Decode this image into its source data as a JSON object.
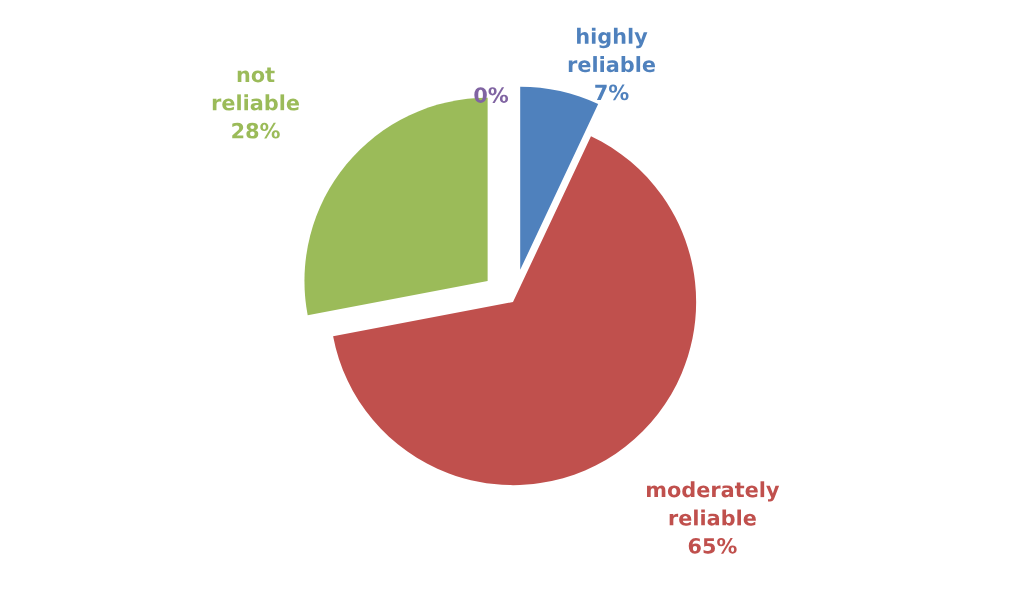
{
  "chart_data": {
    "type": "pie",
    "categories": [
      null,
      "highly reliable",
      "moderately reliable",
      "not reliable"
    ],
    "values": [
      0,
      7,
      65,
      28
    ],
    "value_labels": [
      "0%",
      "7%",
      "65%",
      "28%"
    ],
    "colors": [
      "#8064a2",
      "#4f81bd",
      "#c0504d",
      "#9bbb59"
    ],
    "legend": false
  }
}
